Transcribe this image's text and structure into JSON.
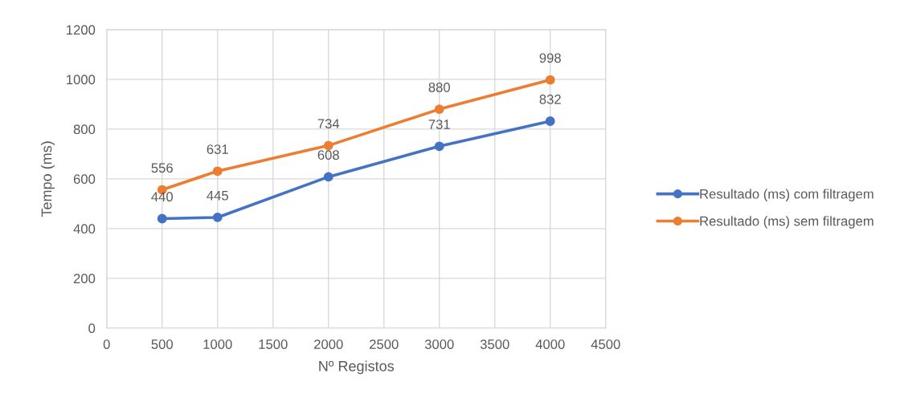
{
  "chart_data": {
    "type": "line",
    "xlabel": "Nº Registos",
    "ylabel": "Tempo (ms)",
    "x": [
      500,
      1000,
      2000,
      3000,
      4000
    ],
    "series": [
      {
        "name": "Resultado (ms) com filtragem",
        "color": "#4472c4",
        "values": [
          440,
          445,
          608,
          731,
          832
        ]
      },
      {
        "name": "Resultado (ms) sem filtragem",
        "color": "#ed7d31",
        "values": [
          556,
          631,
          734,
          880,
          998
        ]
      }
    ],
    "xlim": [
      0,
      4500
    ],
    "xticks": [
      0,
      500,
      1000,
      1500,
      2000,
      2500,
      3000,
      3500,
      4000,
      4500
    ],
    "ylim": [
      0,
      1200
    ],
    "yticks": [
      0,
      200,
      400,
      600,
      800,
      1000,
      1200
    ],
    "grid": true,
    "legend": "right",
    "marker": "circle",
    "line_style": "solid",
    "data_labels": true
  }
}
